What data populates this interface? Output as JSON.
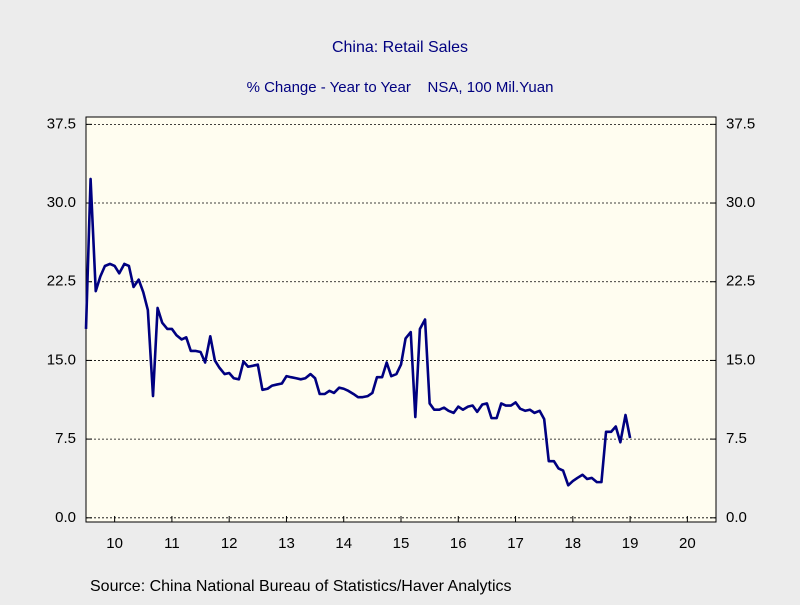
{
  "chart_data": {
    "type": "line",
    "title": "China: Retail Sales",
    "subtitle": "% Change - Year to Year    NSA, 100 Mil.Yuan",
    "source": "Source:  China National Bureau of Statistics/Haver Analytics",
    "xlim": [
      10,
      21
    ],
    "xticks": [
      {
        "value": 10.5,
        "label": "10"
      },
      {
        "value": 11.5,
        "label": "11"
      },
      {
        "value": 12.5,
        "label": "12"
      },
      {
        "value": 13.5,
        "label": "13"
      },
      {
        "value": 14.5,
        "label": "14"
      },
      {
        "value": 15.5,
        "label": "15"
      },
      {
        "value": 16.5,
        "label": "16"
      },
      {
        "value": 17.5,
        "label": "17"
      },
      {
        "value": 18.5,
        "label": "18"
      },
      {
        "value": 19.5,
        "label": "19"
      },
      {
        "value": 20.5,
        "label": "20"
      }
    ],
    "ylim": [
      -0.4,
      38.2
    ],
    "yticks": [
      {
        "value": 0,
        "label": "0.0"
      },
      7.5,
      {
        "value": 15,
        "label": "15.0"
      },
      22.5,
      {
        "value": 30,
        "label": "30.0"
      },
      37.5
    ],
    "grid": true,
    "x": [
      10.0,
      10.08,
      10.17,
      10.25,
      10.33,
      10.42,
      10.5,
      10.58,
      10.67,
      10.75,
      10.83,
      10.92,
      11.0,
      11.08,
      11.17,
      11.25,
      11.33,
      11.42,
      11.5,
      11.58,
      11.67,
      11.75,
      11.83,
      11.92,
      12.0,
      12.08,
      12.17,
      12.25,
      12.33,
      12.42,
      12.5,
      12.58,
      12.67,
      12.75,
      12.83,
      12.92,
      13.0,
      13.08,
      13.17,
      13.25,
      13.33,
      13.42,
      13.5,
      13.58,
      13.67,
      13.75,
      13.83,
      13.92,
      14.0,
      14.08,
      14.17,
      14.25,
      14.33,
      14.42,
      14.5,
      14.58,
      14.67,
      14.75,
      14.83,
      14.92,
      15.0,
      15.08,
      15.17,
      15.25,
      15.33,
      15.42,
      15.5,
      15.58,
      15.67,
      15.75,
      15.83,
      15.92,
      16.0,
      16.08,
      16.17,
      16.25,
      16.33,
      16.42,
      16.5,
      16.58,
      16.67,
      16.75,
      16.83,
      16.92,
      17.0,
      17.08,
      17.17,
      17.25,
      17.33,
      17.42,
      17.5,
      17.58,
      17.67,
      17.75,
      17.83,
      17.92,
      18.0,
      18.08,
      18.17,
      18.25,
      18.33,
      18.42,
      18.5,
      18.58,
      18.67,
      18.75,
      18.83,
      18.92,
      19.0,
      19.08,
      19.17,
      19.25,
      19.33,
      19.42,
      19.5
    ],
    "series": [
      {
        "name": "Retail Sales",
        "color": "#000080",
        "values": [
          18.0,
          32.3,
          21.6,
          23.0,
          24.0,
          24.2,
          24.0,
          23.3,
          24.2,
          24.0,
          22.0,
          22.7,
          21.5,
          19.8,
          11.6,
          20.0,
          18.6,
          18.0,
          18.0,
          17.4,
          17.0,
          17.2,
          15.9,
          15.9,
          15.8,
          14.8,
          17.3,
          15.0,
          14.3,
          13.7,
          13.8,
          13.3,
          13.2,
          14.9,
          14.4,
          14.5,
          14.6,
          12.2,
          12.3,
          12.6,
          12.7,
          12.8,
          13.5,
          13.4,
          13.3,
          13.2,
          13.3,
          13.7,
          13.3,
          11.8,
          11.8,
          12.1,
          11.9,
          12.4,
          12.3,
          12.1,
          11.8,
          11.5,
          11.5,
          11.6,
          11.9,
          13.4,
          13.4,
          14.8,
          13.5,
          13.7,
          14.6,
          17.1,
          17.7,
          9.6,
          18.0,
          18.9,
          10.9,
          10.3,
          10.3,
          10.5,
          10.2,
          10.0,
          10.6,
          10.3,
          10.6,
          10.7,
          10.1,
          10.8,
          10.9,
          9.5,
          9.5,
          10.9,
          10.7,
          10.7,
          11.0,
          10.4,
          10.2,
          10.3,
          10.0,
          10.2,
          9.4,
          5.4,
          5.4,
          4.7,
          4.5,
          3.1,
          3.5,
          3.8,
          4.1,
          3.7,
          3.8,
          3.4,
          3.4,
          8.2,
          8.2,
          8.7,
          7.2,
          9.8,
          7.6
        ]
      }
    ]
  }
}
